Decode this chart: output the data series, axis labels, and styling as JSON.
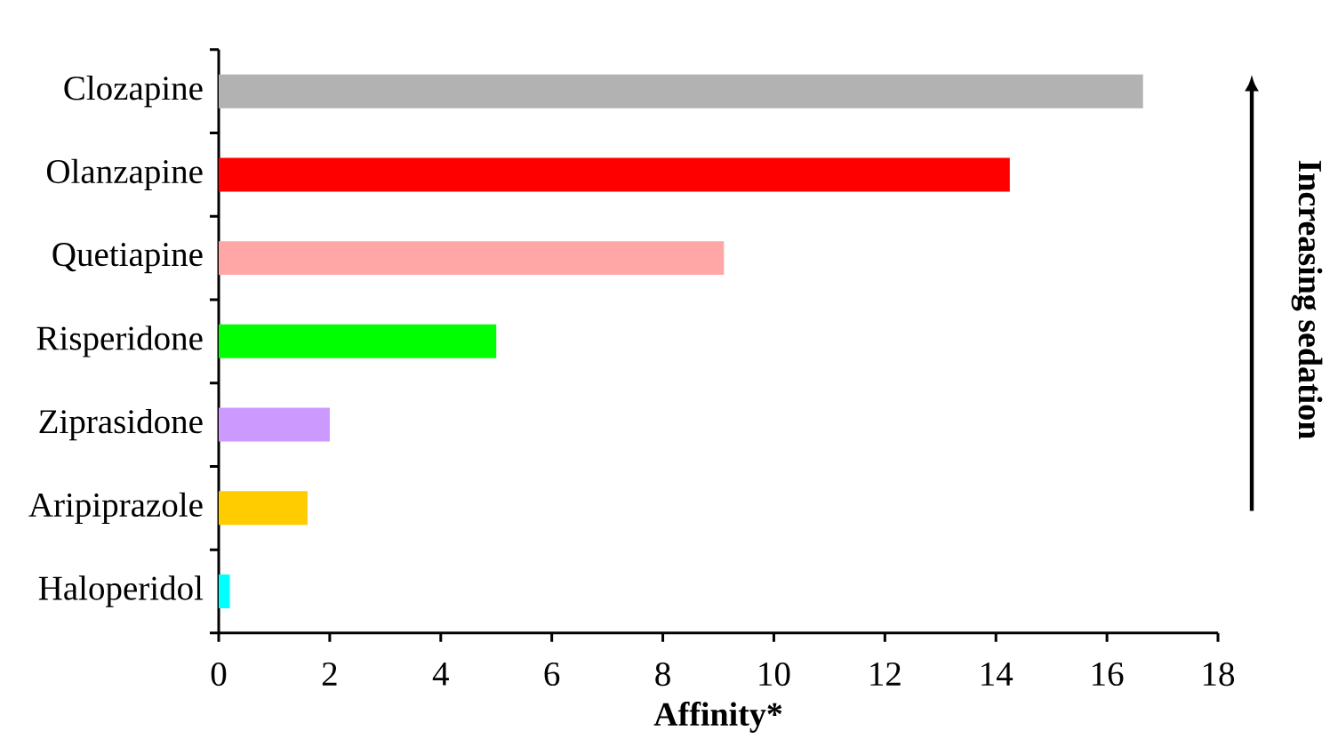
{
  "chart_data": {
    "type": "bar",
    "orientation": "horizontal",
    "categories": [
      "Clozapine",
      "Olanzapine",
      "Quetiapine",
      "Risperidone",
      "Ziprasidone",
      "Aripiprazole",
      "Haloperidol"
    ],
    "values": [
      16.65,
      14.25,
      9.1,
      5.0,
      2.0,
      1.6,
      0.2
    ],
    "colors": [
      "#b2b2b2",
      "#ff0000",
      "#ffa6a6",
      "#00ff00",
      "#cc99ff",
      "#ffcc00",
      "#00ffff"
    ],
    "xlabel": "Affinity*",
    "xlim": [
      0,
      18
    ],
    "xticks": [
      0,
      2,
      4,
      6,
      8,
      10,
      12,
      14,
      16,
      18
    ],
    "annotations": [
      "Increasing sedation"
    ],
    "grid": false
  }
}
